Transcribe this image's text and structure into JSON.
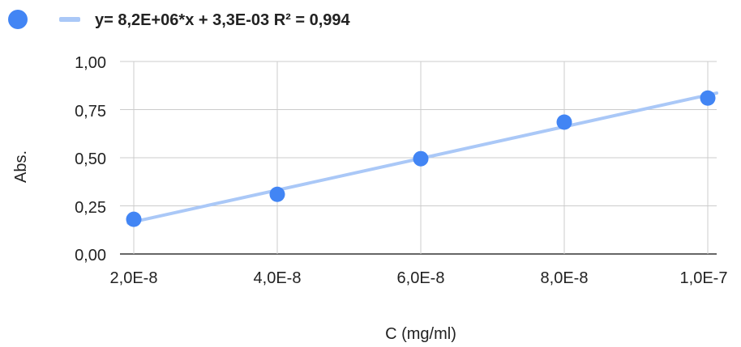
{
  "chart_data": {
    "type": "scatter",
    "xlabel": "C (mg/ml)",
    "ylabel": "Abs.",
    "xlim": [
      2e-08,
      1e-07
    ],
    "ylim": [
      0,
      1
    ],
    "grid": true,
    "legend_position": "top-left",
    "x_tick_labels": [
      "2,0E-8",
      "4,0E-8",
      "6,0E-8",
      "8,0E-8",
      "1,0E-7"
    ],
    "y_tick_labels": [
      "0,00",
      "0,25",
      "0,50",
      "0,75",
      "1,00"
    ],
    "series": [
      {
        "color": "#4285f4",
        "x": [
          2e-08,
          4e-08,
          6e-08,
          8e-08,
          1e-07
        ],
        "y": [
          0.18,
          0.31,
          0.495,
          0.685,
          0.81
        ]
      }
    ],
    "trendline": {
      "label": "y= 8,2E+06*x + 3,3E-03 R² = 0,994",
      "slope": 8200000.0,
      "intercept": 0.0033,
      "color": "#aac8f7"
    }
  }
}
